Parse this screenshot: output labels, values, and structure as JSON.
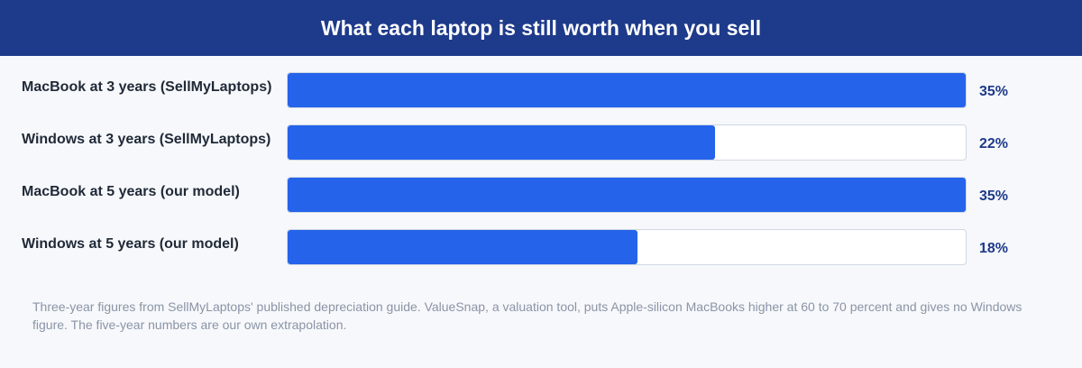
{
  "colors": {
    "header_bg": "#1e3a8a",
    "bar_fill": "#2563eb",
    "track_bg": "#ffffff",
    "value_text": "#1e3a8a"
  },
  "chart_data": {
    "type": "bar",
    "orientation": "horizontal",
    "title": "What each laptop is still worth when you sell",
    "categories": [
      "MacBook at 3 years (SellMyLaptops)",
      "Windows at 3 years (SellMyLaptops)",
      "MacBook at 5 years (our model)",
      "Windows at 5 years (our model)"
    ],
    "values": [
      35,
      22,
      35,
      18
    ],
    "value_labels": [
      "35%",
      "22%",
      "35%",
      "18%"
    ],
    "xlim": [
      0,
      35
    ],
    "grid": false,
    "legend": "none",
    "footnote": "Three-year figures from SellMyLaptops' published depreciation guide. ValueSnap, a valuation tool, puts Apple-silicon MacBooks higher at 60 to 70 percent and gives no Windows figure. The five-year numbers are our own extrapolation."
  }
}
